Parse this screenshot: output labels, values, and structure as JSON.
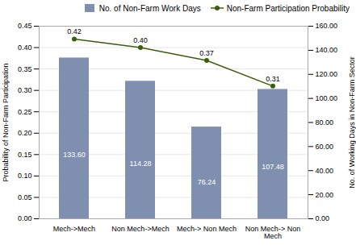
{
  "chart_data": {
    "type": "bar",
    "categories": [
      "Mech->Mech",
      "Non Mech->Mech",
      "Mech-> Non Mech",
      "Non Mech-> Non\nMech"
    ],
    "series": [
      {
        "name": "No. of Non-Farm Work Days",
        "type": "bar",
        "axis": "y2",
        "color": "#7f8faf",
        "values": [
          133.6,
          114.28,
          76.24,
          107.48
        ],
        "value_labels": [
          "133.60",
          "114.28",
          "76.24",
          "107.48"
        ]
      },
      {
        "name": "Non-Farm Participation Probability",
        "type": "line",
        "marker": "circle",
        "color": "#3a5e0c",
        "values": [
          0.42,
          0.4,
          0.37,
          0.31
        ],
        "value_labels": [
          "0.42",
          "0.40",
          "0.37",
          "0.31"
        ]
      }
    ],
    "ylabel": "Probability of Non-Farm Participation",
    "y2label": "No. of Working Days in Non-Farm Sector",
    "ylim": [
      0,
      0.45
    ],
    "yticks": [
      {
        "value": 0.0,
        "label": "0.00"
      },
      {
        "value": 0.05,
        "label": "0.05"
      },
      {
        "value": 0.1,
        "label": "0.10"
      },
      {
        "value": 0.15,
        "label": "0.15"
      },
      {
        "value": 0.2,
        "label": "0.20"
      },
      {
        "value": 0.25,
        "label": "0.25"
      },
      {
        "value": 0.3,
        "label": "0.30"
      },
      {
        "value": 0.35,
        "label": "0.35"
      },
      {
        "value": 0.4,
        "label": "0.40"
      },
      {
        "value": 0.45,
        "label": "0.45"
      }
    ],
    "y2lim": [
      0,
      160.0
    ],
    "y2ticks": [
      {
        "value": 0,
        "label": "0.00"
      },
      {
        "value": 20,
        "label": "20.00"
      },
      {
        "value": 40,
        "label": "40.00"
      },
      {
        "value": 60,
        "label": "60.00"
      },
      {
        "value": 80,
        "label": "80.00"
      },
      {
        "value": 100,
        "label": "100.00"
      },
      {
        "value": 120,
        "label": "120.00"
      },
      {
        "value": 140,
        "label": "140.00"
      },
      {
        "value": 160,
        "label": "160.00"
      }
    ],
    "grid": true,
    "legend": "upper right",
    "data_labels": true
  }
}
